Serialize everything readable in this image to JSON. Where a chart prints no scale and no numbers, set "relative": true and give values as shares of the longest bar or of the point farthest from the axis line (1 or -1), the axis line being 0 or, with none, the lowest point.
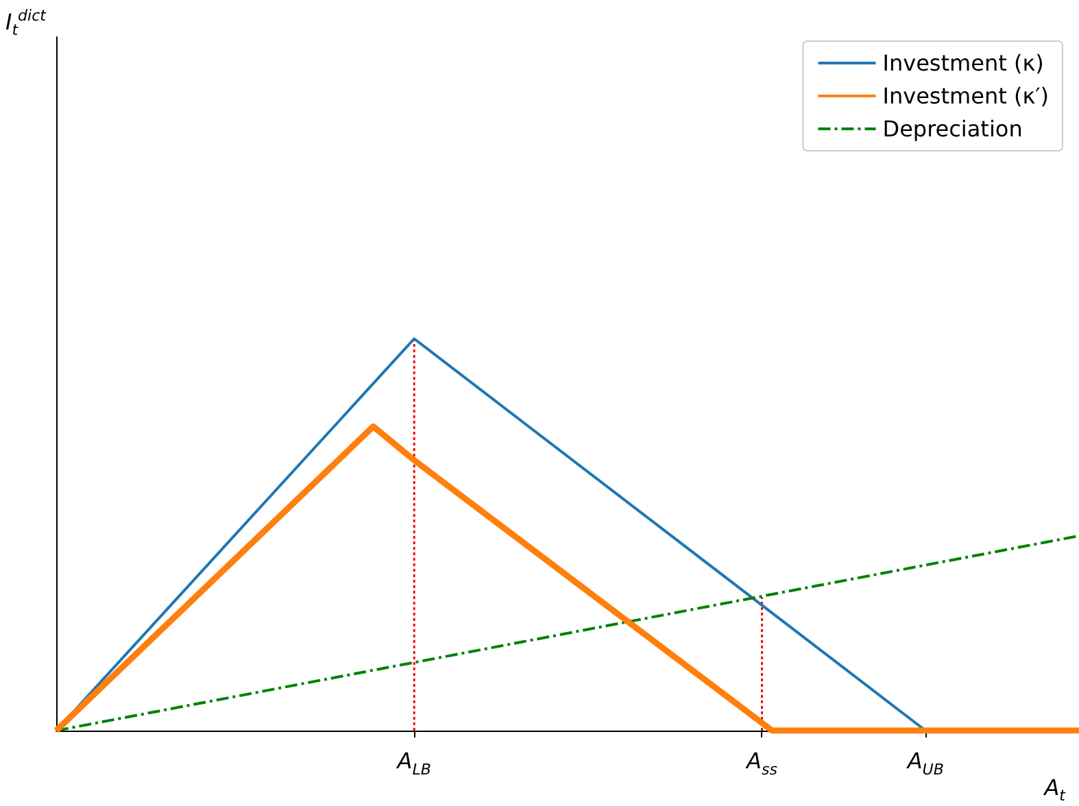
{
  "chart_data": {
    "type": "line",
    "relative": true,
    "xlabel": "A$_{t}$",
    "annotations": [
      "I$_{t}$$^{dict}$"
    ],
    "categories": [
      null,
      null,
      null,
      null,
      null,
      null,
      null,
      null,
      null,
      null,
      null,
      null,
      null,
      null,
      null,
      null,
      null,
      null,
      null,
      null,
      null,
      null,
      null,
      null,
      null,
      null,
      null,
      null,
      null,
      null,
      null,
      null,
      null,
      null,
      null,
      "A$_{LB}$",
      null,
      null,
      null,
      null,
      null,
      null,
      null,
      null,
      null,
      null,
      null,
      null,
      null,
      null,
      null,
      null,
      null,
      null,
      null,
      null,
      null,
      null,
      null,
      null,
      null,
      null,
      null,
      null,
      null,
      null,
      null,
      null,
      null,
      "A$_{ss}$",
      null,
      null,
      null,
      null,
      null,
      null,
      null,
      null,
      null,
      null,
      null,
      null,
      null,
      null,
      null,
      "A$_{UB}$",
      null,
      null,
      null,
      null,
      null,
      null,
      null,
      null,
      null,
      null,
      null,
      null,
      null,
      null,
      null
    ],
    "grid": false,
    "legend": "top right",
    "marker": "none",
    "series": [
      {
        "name": "Investment (κ)",
        "color": "#1f77b4",
        "values": [
          0,
          null,
          null,
          null,
          null,
          null,
          null,
          null,
          null,
          null,
          null,
          null,
          null,
          null,
          null,
          null,
          null,
          null,
          null,
          null,
          null,
          null,
          null,
          null,
          null,
          null,
          null,
          null,
          null,
          null,
          null,
          null,
          null,
          null,
          null,
          1,
          null,
          null,
          null,
          null,
          null,
          null,
          null,
          null,
          null,
          null,
          null,
          null,
          null,
          null,
          null,
          null,
          null,
          null,
          null,
          null,
          null,
          null,
          null,
          null,
          null,
          null,
          null,
          null,
          null,
          null,
          null,
          null,
          null,
          null,
          null,
          null,
          null,
          null,
          null,
          null,
          null,
          null,
          null,
          null,
          null,
          null,
          null,
          null,
          null,
          0,
          null,
          null,
          null,
          null,
          null,
          null,
          null,
          null,
          null,
          null,
          null,
          null,
          null,
          null,
          null
        ]
      },
      {
        "name": "Investment (κ′)",
        "color": "#ff7f0e",
        "values": [
          0,
          null,
          null,
          null,
          null,
          null,
          null,
          null,
          null,
          null,
          null,
          null,
          null,
          null,
          null,
          null,
          null,
          null,
          null,
          null,
          null,
          null,
          null,
          null,
          null,
          null,
          null,
          null,
          null,
          null,
          null,
          0.776,
          null,
          null,
          null,
          0.69,
          null,
          null,
          null,
          null,
          null,
          null,
          null,
          null,
          null,
          null,
          null,
          null,
          null,
          null,
          null,
          null,
          null,
          null,
          null,
          null,
          null,
          null,
          null,
          null,
          null,
          null,
          null,
          null,
          null,
          null,
          null,
          null,
          null,
          null,
          0,
          null,
          null,
          null,
          null,
          null,
          null,
          null,
          null,
          null,
          null,
          null,
          null,
          null,
          null,
          null,
          null,
          null,
          null,
          null,
          null,
          null,
          null,
          null,
          null,
          null,
          null,
          null,
          null,
          null,
          0
        ]
      },
      {
        "name": "Depreciation",
        "color": "#008000",
        "line_style": "dashdot",
        "values": [
          0,
          null,
          null,
          null,
          null,
          null,
          null,
          null,
          null,
          null,
          null,
          null,
          null,
          null,
          null,
          null,
          null,
          null,
          null,
          null,
          null,
          null,
          null,
          null,
          null,
          null,
          null,
          null,
          null,
          null,
          null,
          null,
          null,
          null,
          null,
          null,
          null,
          null,
          null,
          null,
          null,
          null,
          null,
          null,
          null,
          null,
          null,
          null,
          null,
          null,
          null,
          null,
          null,
          null,
          null,
          null,
          null,
          null,
          null,
          null,
          null,
          null,
          null,
          null,
          null,
          null,
          null,
          null,
          null,
          null,
          null,
          null,
          null,
          null,
          null,
          null,
          null,
          null,
          null,
          null,
          null,
          null,
          null,
          null,
          null,
          null,
          null,
          null,
          null,
          null,
          null,
          null,
          null,
          null,
          null,
          null,
          null,
          null,
          null,
          null,
          0.497
        ]
      },
      {
        "color": "#ff0000",
        "line_style": "dotted",
        "x": [
          "A$_{LB}$",
          "A$_{LB}$"
        ],
        "values": [
          0,
          1
        ]
      },
      {
        "color": "#ff0000",
        "line_style": "dotted",
        "x": [
          "A$_{ss}$",
          "A$_{ss}$"
        ],
        "values": [
          0,
          0.34
        ]
      }
    ]
  }
}
